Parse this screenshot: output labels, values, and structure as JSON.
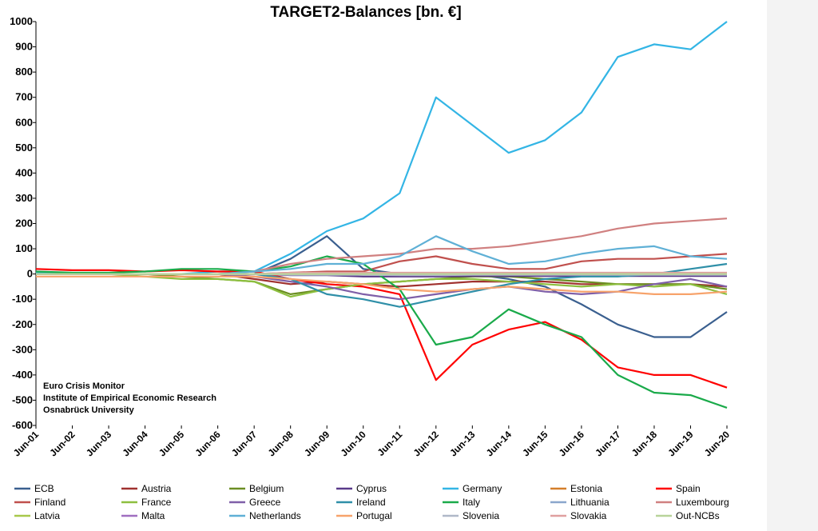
{
  "chart_data": {
    "type": "line",
    "title": "TARGET2-Balances [bn. €]",
    "xlabel": "",
    "ylabel": "",
    "ylim": [
      -600,
      1000
    ],
    "yticks": [
      1000,
      900,
      800,
      700,
      600,
      500,
      400,
      300,
      200,
      100,
      0,
      -100,
      -200,
      -300,
      -400,
      -500,
      -600
    ],
    "xticks": [
      "Jun-01",
      "Jun-02",
      "Jun-03",
      "Jun-04",
      "Jun-05",
      "Jun-06",
      "Jun-07",
      "Jun-08",
      "Jun-09",
      "Jun-10",
      "Jun-11",
      "Jun-12",
      "Jun-13",
      "Jun-14",
      "Jun-15",
      "Jun-16",
      "Jun-17",
      "Jun-18",
      "Jun-19",
      "Jun-20"
    ],
    "x": [
      2001,
      2002,
      2003,
      2004,
      2005,
      2006,
      2007,
      2008,
      2009,
      2010,
      2011,
      2012,
      2013,
      2014,
      2015,
      2016,
      2017,
      2018,
      2019,
      2020
    ],
    "grid": false,
    "legend_position": "bottom",
    "credits": [
      "Euro Crisis Monitor",
      "Institute of Empirical Economic Research",
      "Osnabrück University"
    ],
    "series": [
      {
        "name": "ECB",
        "color": "#3a5f8f",
        "values": [
          0,
          0,
          0,
          0,
          0,
          0,
          0,
          60,
          150,
          20,
          0,
          0,
          0,
          -20,
          -50,
          -120,
          -200,
          -250,
          -250,
          -150
        ]
      },
      {
        "name": "Austria",
        "color": "#a0312f",
        "values": [
          0,
          0,
          0,
          0,
          0,
          0,
          -20,
          -40,
          -30,
          -40,
          -50,
          -40,
          -30,
          -30,
          -30,
          -40,
          -40,
          -40,
          -40,
          -50
        ]
      },
      {
        "name": "Belgium",
        "color": "#6b8e23",
        "values": [
          0,
          0,
          0,
          0,
          -10,
          -20,
          -30,
          -80,
          -60,
          -40,
          -30,
          -20,
          -10,
          -10,
          -20,
          -30,
          -40,
          -40,
          -40,
          -60
        ]
      },
      {
        "name": "Cyprus",
        "color": "#5a3a8a",
        "values": [
          0,
          0,
          0,
          0,
          0,
          0,
          0,
          -5,
          -5,
          -10,
          -10,
          -10,
          -8,
          -8,
          -8,
          -8,
          -8,
          -8,
          -8,
          -8
        ]
      },
      {
        "name": "Germany",
        "color": "#33b5e5",
        "values": [
          5,
          0,
          0,
          0,
          0,
          10,
          10,
          80,
          170,
          220,
          320,
          700,
          590,
          480,
          530,
          640,
          860,
          910,
          890,
          1000
        ]
      },
      {
        "name": "Estonia",
        "color": "#d47f2a",
        "values": [
          0,
          0,
          0,
          0,
          0,
          0,
          0,
          -2,
          -2,
          -2,
          -2,
          -2,
          -2,
          -2,
          -2,
          -2,
          -2,
          -2,
          -2,
          -2
        ]
      },
      {
        "name": "Spain",
        "color": "#ff0000",
        "values": [
          20,
          15,
          15,
          10,
          15,
          10,
          10,
          -20,
          -40,
          -50,
          -80,
          -420,
          -280,
          -220,
          -190,
          -260,
          -370,
          -400,
          -400,
          -450
        ]
      },
      {
        "name": "Finland",
        "color": "#c0504d",
        "values": [
          0,
          0,
          0,
          0,
          0,
          0,
          0,
          5,
          10,
          10,
          50,
          70,
          40,
          20,
          20,
          50,
          60,
          60,
          70,
          80
        ]
      },
      {
        "name": "France",
        "color": "#8dbf3f",
        "values": [
          0,
          0,
          0,
          -10,
          -20,
          -20,
          -30,
          -90,
          -60,
          -40,
          -30,
          -20,
          -20,
          -30,
          -40,
          -50,
          -40,
          -50,
          -40,
          -80
        ]
      },
      {
        "name": "Greece",
        "color": "#7f5fa8",
        "values": [
          0,
          0,
          0,
          0,
          0,
          0,
          -10,
          -30,
          -50,
          -80,
          -100,
          -80,
          -60,
          -50,
          -70,
          -80,
          -70,
          -40,
          -20,
          -50
        ]
      },
      {
        "name": "Ireland",
        "color": "#2f8fa8",
        "values": [
          0,
          0,
          0,
          0,
          0,
          0,
          0,
          -20,
          -80,
          -100,
          -130,
          -100,
          -70,
          -40,
          -20,
          -10,
          -10,
          0,
          20,
          40
        ]
      },
      {
        "name": "Italy",
        "color": "#1aaa4a",
        "values": [
          10,
          5,
          5,
          10,
          20,
          20,
          10,
          30,
          70,
          40,
          -60,
          -280,
          -250,
          -140,
          -200,
          -250,
          -400,
          -470,
          -480,
          -530
        ]
      },
      {
        "name": "Lithuania",
        "color": "#8aa6cc",
        "values": [
          0,
          0,
          0,
          0,
          0,
          0,
          0,
          -2,
          -2,
          -2,
          -2,
          -2,
          -2,
          -2,
          -2,
          -2,
          -2,
          -2,
          -2,
          -2
        ]
      },
      {
        "name": "Luxembourg",
        "color": "#d08080",
        "values": [
          0,
          0,
          0,
          0,
          0,
          0,
          10,
          40,
          60,
          70,
          80,
          100,
          100,
          110,
          130,
          150,
          180,
          200,
          210,
          220
        ]
      },
      {
        "name": "Latvia",
        "color": "#a8c84a",
        "values": [
          0,
          0,
          0,
          0,
          0,
          0,
          0,
          -2,
          -2,
          -2,
          -2,
          -2,
          -2,
          -2,
          -2,
          -2,
          -2,
          -2,
          -2,
          -2
        ]
      },
      {
        "name": "Malta",
        "color": "#a06fc0",
        "values": [
          0,
          0,
          0,
          0,
          0,
          0,
          0,
          -1,
          -1,
          -1,
          -1,
          -1,
          -1,
          -1,
          -1,
          -1,
          -1,
          -1,
          -1,
          -1
        ]
      },
      {
        "name": "Netherlands",
        "color": "#5fb0d6",
        "values": [
          0,
          0,
          0,
          0,
          0,
          0,
          10,
          20,
          40,
          40,
          70,
          150,
          90,
          40,
          50,
          80,
          100,
          110,
          70,
          60
        ]
      },
      {
        "name": "Portugal",
        "color": "#f7a36b",
        "values": [
          -10,
          -10,
          -10,
          -10,
          -10,
          -10,
          -10,
          -20,
          -30,
          -40,
          -60,
          -70,
          -60,
          -50,
          -60,
          -70,
          -70,
          -80,
          -80,
          -70
        ]
      },
      {
        "name": "Slovenia",
        "color": "#b0b8c8",
        "values": [
          0,
          0,
          0,
          0,
          0,
          0,
          0,
          -3,
          -3,
          -3,
          -5,
          -5,
          -3,
          -3,
          -3,
          -3,
          -3,
          -3,
          -3,
          -3
        ]
      },
      {
        "name": "Slovakia",
        "color": "#e0a0a0",
        "values": [
          0,
          0,
          0,
          0,
          0,
          0,
          0,
          5,
          5,
          5,
          5,
          5,
          5,
          5,
          5,
          5,
          5,
          5,
          5,
          5
        ]
      },
      {
        "name": "Out-NCBs",
        "color": "#b8d49a",
        "values": [
          0,
          0,
          0,
          0,
          0,
          0,
          0,
          0,
          0,
          0,
          0,
          0,
          0,
          0,
          0,
          0,
          0,
          0,
          0,
          0
        ]
      }
    ]
  }
}
